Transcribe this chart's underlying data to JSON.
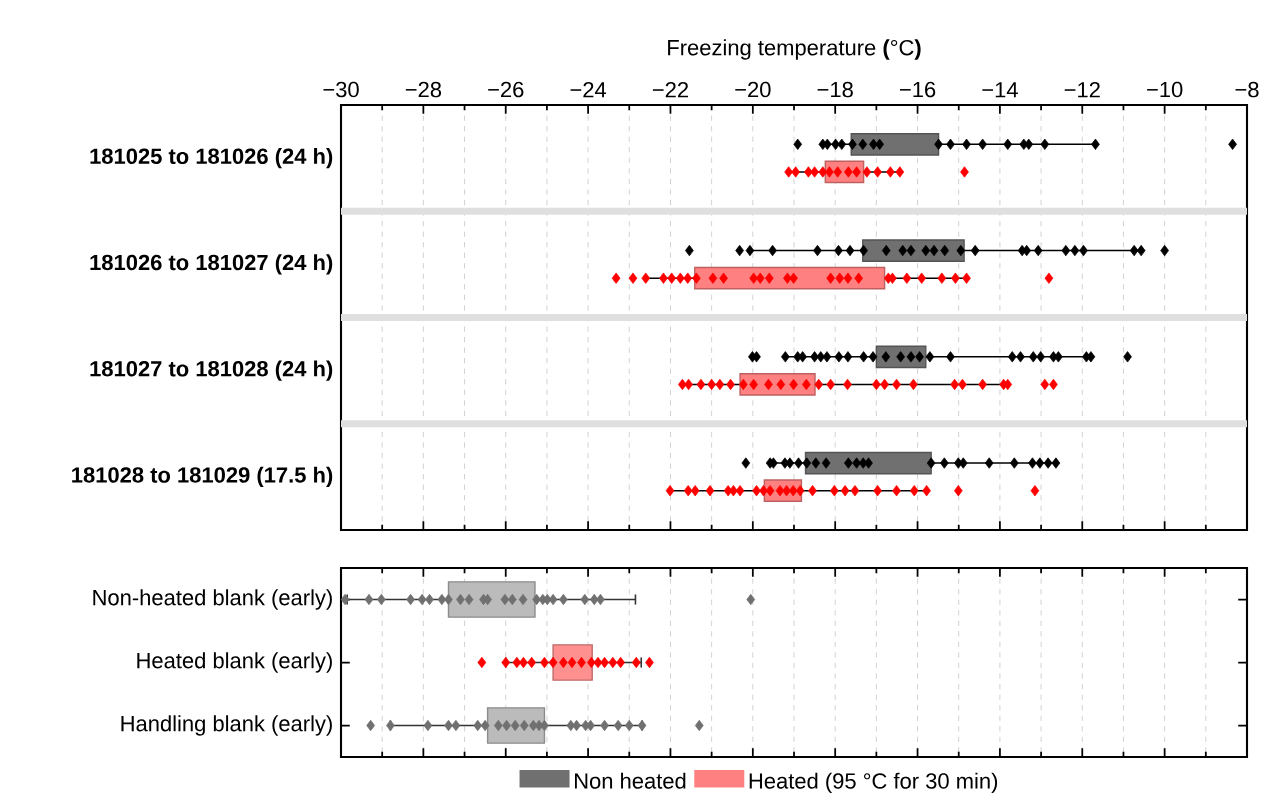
{
  "chart_data": [
    {
      "type": "box",
      "orientation": "horizontal",
      "xlabel": "Freezing temperature **(**°C**)**",
      "categories": [
        "181025 to 181026 (24 h)",
        "181026 to 181027 (24 h)",
        "181027 to 181028 (24 h)",
        "181028 to 181029 (17.5 h)"
      ],
      "xlim": [
        -30,
        -8
      ],
      "xticks": [
        {
          "value": -30,
          "label": "−30"
        },
        {
          "value": -28,
          "label": "−28"
        },
        {
          "value": -26,
          "label": "−26"
        },
        {
          "value": -24,
          "label": "−24"
        },
        {
          "value": -22,
          "label": "−22"
        },
        {
          "value": -20,
          "label": "−20"
        },
        {
          "value": -18,
          "label": "−18"
        },
        {
          "value": -16,
          "label": "−16"
        },
        {
          "value": -14,
          "label": "−14"
        },
        {
          "value": -12,
          "label": "−12"
        },
        {
          "value": -10,
          "label": "−10"
        },
        {
          "value": -8,
          "label": "−8"
        }
      ],
      "grid": "x",
      "legend": "bottom",
      "marker": "diamond",
      "series": [
        {
          "name": "Non heated",
          "color": "#707070",
          "boxes": [
            {
              "low": -18.3,
              "q1": -17.61,
              "q3": -15.49,
              "high": -11.68
            },
            {
              "low": -20.07,
              "q1": -17.33,
              "q3": -14.87,
              "high": -10.57
            },
            {
              "low": -19.21,
              "q1": -17.0,
              "q3": -15.8,
              "high": -11.79
            },
            {
              "low": -19.58,
              "q1": -18.72,
              "q3": -15.67,
              "high": -12.64
            }
          ]
        },
        {
          "name": "Heated (95 °C for 30 min)",
          "color": "#ff8080",
          "boxes": [
            {
              "low": -19.13,
              "q1": -18.24,
              "q3": -17.31,
              "high": -16.43
            },
            {
              "low": -22.6,
              "q1": -21.41,
              "q3": -16.8,
              "high": -14.81
            },
            {
              "low": -21.71,
              "q1": -20.31,
              "q3": -18.49,
              "high": -13.81
            },
            {
              "low": -22.01,
              "q1": -19.72,
              "q3": -18.82,
              "high": -15.78
            }
          ]
        },
        {
          "type": "scatter",
          "color": "#000000",
          "x": [
            "181025 to 181026 (24 h)",
            "181025 to 181026 (24 h)",
            "181025 to 181026 (24 h)",
            "181025 to 181026 (24 h)",
            "181025 to 181026 (24 h)",
            "181025 to 181026 (24 h)",
            "181025 to 181026 (24 h)",
            "181025 to 181026 (24 h)",
            "181025 to 181026 (24 h)",
            "181025 to 181026 (24 h)",
            "181025 to 181026 (24 h)",
            "181025 to 181026 (24 h)",
            "181025 to 181026 (24 h)",
            "181025 to 181026 (24 h)",
            "181025 to 181026 (24 h)",
            "181025 to 181026 (24 h)",
            "181025 to 181026 (24 h)",
            "181025 to 181026 (24 h)",
            "181025 to 181026 (24 h)",
            "181026 to 181027 (24 h)",
            "181026 to 181027 (24 h)",
            "181026 to 181027 (24 h)",
            "181026 to 181027 (24 h)",
            "181026 to 181027 (24 h)",
            "181026 to 181027 (24 h)",
            "181026 to 181027 (24 h)",
            "181026 to 181027 (24 h)",
            "181026 to 181027 (24 h)",
            "181026 to 181027 (24 h)",
            "181026 to 181027 (24 h)",
            "181026 to 181027 (24 h)",
            "181026 to 181027 (24 h)",
            "181026 to 181027 (24 h)",
            "181026 to 181027 (24 h)",
            "181026 to 181027 (24 h)",
            "181026 to 181027 (24 h)",
            "181026 to 181027 (24 h)",
            "181026 to 181027 (24 h)",
            "181026 to 181027 (24 h)",
            "181026 to 181027 (24 h)",
            "181026 to 181027 (24 h)",
            "181026 to 181027 (24 h)",
            "181026 to 181027 (24 h)",
            "181026 to 181027 (24 h)",
            "181027 to 181028 (24 h)",
            "181027 to 181028 (24 h)",
            "181027 to 181028 (24 h)",
            "181027 to 181028 (24 h)",
            "181027 to 181028 (24 h)",
            "181027 to 181028 (24 h)",
            "181027 to 181028 (24 h)",
            "181027 to 181028 (24 h)",
            "181027 to 181028 (24 h)",
            "181027 to 181028 (24 h)",
            "181027 to 181028 (24 h)",
            "181027 to 181028 (24 h)",
            "181027 to 181028 (24 h)",
            "181027 to 181028 (24 h)",
            "181027 to 181028 (24 h)",
            "181027 to 181028 (24 h)",
            "181027 to 181028 (24 h)",
            "181027 to 181028 (24 h)",
            "181027 to 181028 (24 h)",
            "181027 to 181028 (24 h)",
            "181027 to 181028 (24 h)",
            "181027 to 181028 (24 h)",
            "181027 to 181028 (24 h)",
            "181027 to 181028 (24 h)",
            "181027 to 181028 (24 h)",
            "181027 to 181028 (24 h)",
            "181027 to 181028 (24 h)",
            "181028 to 181029 (17.5 h)",
            "181028 to 181029 (17.5 h)",
            "181028 to 181029 (17.5 h)",
            "181028 to 181029 (17.5 h)",
            "181028 to 181029 (17.5 h)",
            "181028 to 181029 (17.5 h)",
            "181028 to 181029 (17.5 h)",
            "181028 to 181029 (17.5 h)",
            "181028 to 181029 (17.5 h)",
            "181028 to 181029 (17.5 h)",
            "181028 to 181029 (17.5 h)",
            "181028 to 181029 (17.5 h)",
            "181028 to 181029 (17.5 h)",
            "181028 to 181029 (17.5 h)",
            "181028 to 181029 (17.5 h)",
            "181028 to 181029 (17.5 h)",
            "181028 to 181029 (17.5 h)",
            "181028 to 181029 (17.5 h)",
            "181028 to 181029 (17.5 h)",
            "181028 to 181029 (17.5 h)",
            "181028 to 181029 (17.5 h)",
            "181028 to 181029 (17.5 h)",
            "181028 to 181029 (17.5 h)"
          ],
          "values": [
            -18.91,
            -18.3,
            -18.19,
            -17.99,
            -17.84,
            -17.58,
            -17.33,
            -17.07,
            -16.92,
            -15.49,
            -15.2,
            -14.81,
            -14.42,
            -13.81,
            -13.42,
            -13.3,
            -12.91,
            -11.68,
            -8.35,
            -21.54,
            -20.32,
            -20.07,
            -19.52,
            -18.43,
            -17.92,
            -17.64,
            -17.31,
            -16.76,
            -16.36,
            -16.16,
            -15.8,
            -15.6,
            -15.34,
            -14.95,
            -14.6,
            -13.46,
            -13.35,
            -13.07,
            -12.4,
            -12.18,
            -11.97,
            -10.74,
            -10.57,
            -10.0,
            -20.01,
            -19.91,
            -19.21,
            -18.91,
            -18.79,
            -18.5,
            -18.35,
            -18.2,
            -17.91,
            -17.69,
            -17.31,
            -17.08,
            -16.77,
            -16.41,
            -16.16,
            -15.95,
            -15.7,
            -15.2,
            -13.7,
            -13.5,
            -13.19,
            -13.01,
            -12.7,
            -12.58,
            -11.9,
            -11.79,
            -10.9,
            -20.17,
            -19.58,
            -19.5,
            -19.22,
            -19.1,
            -18.89,
            -18.69,
            -18.47,
            -18.22,
            -17.68,
            -17.48,
            -17.32,
            -17.19,
            -15.67,
            -15.35,
            -15.01,
            -14.89,
            -14.26,
            -13.65,
            -13.21,
            -13.03,
            -12.83,
            -12.64
          ]
        },
        {
          "type": "scatter",
          "color": "#ff0000",
          "x": [
            "181025 to 181026 (24 h)",
            "181025 to 181026 (24 h)",
            "181025 to 181026 (24 h)",
            "181025 to 181026 (24 h)",
            "181025 to 181026 (24 h)",
            "181025 to 181026 (24 h)",
            "181025 to 181026 (24 h)",
            "181025 to 181026 (24 h)",
            "181025 to 181026 (24 h)",
            "181025 to 181026 (24 h)",
            "181025 to 181026 (24 h)",
            "181025 to 181026 (24 h)",
            "181025 to 181026 (24 h)",
            "181025 to 181026 (24 h)",
            "181026 to 181027 (24 h)",
            "181026 to 181027 (24 h)",
            "181026 to 181027 (24 h)",
            "181026 to 181027 (24 h)",
            "181026 to 181027 (24 h)",
            "181026 to 181027 (24 h)",
            "181026 to 181027 (24 h)",
            "181026 to 181027 (24 h)",
            "181026 to 181027 (24 h)",
            "181026 to 181027 (24 h)",
            "181026 to 181027 (24 h)",
            "181026 to 181027 (24 h)",
            "181026 to 181027 (24 h)",
            "181026 to 181027 (24 h)",
            "181026 to 181027 (24 h)",
            "181026 to 181027 (24 h)",
            "181026 to 181027 (24 h)",
            "181026 to 181027 (24 h)",
            "181026 to 181027 (24 h)",
            "181026 to 181027 (24 h)",
            "181026 to 181027 (24 h)",
            "181026 to 181027 (24 h)",
            "181026 to 181027 (24 h)",
            "181026 to 181027 (24 h)",
            "181026 to 181027 (24 h)",
            "181026 to 181027 (24 h)",
            "181026 to 181027 (24 h)",
            "181027 to 181028 (24 h)",
            "181027 to 181028 (24 h)",
            "181027 to 181028 (24 h)",
            "181027 to 181028 (24 h)",
            "181027 to 181028 (24 h)",
            "181027 to 181028 (24 h)",
            "181027 to 181028 (24 h)",
            "181027 to 181028 (24 h)",
            "181027 to 181028 (24 h)",
            "181027 to 181028 (24 h)",
            "181027 to 181028 (24 h)",
            "181027 to 181028 (24 h)",
            "181027 to 181028 (24 h)",
            "181027 to 181028 (24 h)",
            "181027 to 181028 (24 h)",
            "181027 to 181028 (24 h)",
            "181027 to 181028 (24 h)",
            "181027 to 181028 (24 h)",
            "181027 to 181028 (24 h)",
            "181027 to 181028 (24 h)",
            "181027 to 181028 (24 h)",
            "181027 to 181028 (24 h)",
            "181027 to 181028 (24 h)",
            "181027 to 181028 (24 h)",
            "181027 to 181028 (24 h)",
            "181027 to 181028 (24 h)",
            "181028 to 181029 (17.5 h)",
            "181028 to 181029 (17.5 h)",
            "181028 to 181029 (17.5 h)",
            "181028 to 181029 (17.5 h)",
            "181028 to 181029 (17.5 h)",
            "181028 to 181029 (17.5 h)",
            "181028 to 181029 (17.5 h)",
            "181028 to 181029 (17.5 h)",
            "181028 to 181029 (17.5 h)",
            "181028 to 181029 (17.5 h)",
            "181028 to 181029 (17.5 h)",
            "181028 to 181029 (17.5 h)",
            "181028 to 181029 (17.5 h)",
            "181028 to 181029 (17.5 h)",
            "181028 to 181029 (17.5 h)",
            "181028 to 181029 (17.5 h)",
            "181028 to 181029 (17.5 h)",
            "181028 to 181029 (17.5 h)",
            "181028 to 181029 (17.5 h)",
            "181028 to 181029 (17.5 h)",
            "181028 to 181029 (17.5 h)",
            "181028 to 181029 (17.5 h)",
            "181028 to 181029 (17.5 h)",
            "181028 to 181029 (17.5 h)"
          ],
          "values": [
            -19.13,
            -18.96,
            -18.65,
            -18.5,
            -18.3,
            -18.14,
            -17.94,
            -17.68,
            -17.48,
            -17.23,
            -16.97,
            -16.66,
            -16.43,
            -14.86,
            -23.32,
            -22.91,
            -22.6,
            -22.17,
            -21.97,
            -21.76,
            -21.58,
            -21.37,
            -20.97,
            -20.71,
            -19.98,
            -19.82,
            -19.6,
            -19.16,
            -19.01,
            -18.11,
            -17.89,
            -17.69,
            -17.43,
            -16.71,
            -16.61,
            -16.26,
            -15.9,
            -15.41,
            -15.08,
            -14.81,
            -12.81,
            -21.71,
            -21.56,
            -21.26,
            -21.0,
            -20.8,
            -20.54,
            -20.23,
            -19.98,
            -19.62,
            -19.32,
            -19.01,
            -18.7,
            -18.4,
            -18.11,
            -17.7,
            -17.0,
            -16.8,
            -16.51,
            -16.1,
            -15.1,
            -14.91,
            -14.42,
            -13.91,
            -13.81,
            -12.91,
            -12.7,
            -22.01,
            -21.57,
            -21.4,
            -21.04,
            -20.6,
            -20.47,
            -20.31,
            -19.91,
            -19.74,
            -19.58,
            -19.34,
            -19.18,
            -19.02,
            -18.85,
            -18.55,
            -18.02,
            -17.76,
            -17.52,
            -16.97,
            -16.51,
            -16.08,
            -15.78,
            -15.01,
            -13.15
          ]
        }
      ]
    },
    {
      "type": "box",
      "orientation": "horizontal",
      "categories": [
        "Non-heated blank (early)",
        "Heated blank (early)",
        "Handling blank (early)"
      ],
      "xlim": [
        -30,
        -8
      ],
      "xticks": [
        -30,
        -28,
        -26,
        -24,
        -22,
        -20,
        -18,
        -16,
        -14,
        -12,
        -10,
        -8
      ],
      "tick_labels": "y",
      "grid": "x",
      "marker": "diamond",
      "series": [
        {
          "color": "#bbbbbb",
          "boxes": [
            {
              "low": -29.85,
              "q1": -27.39,
              "q3": -25.29,
              "high": -22.85
            },
            null,
            {
              "low": -28.8,
              "q1": -26.44,
              "q3": -25.06,
              "high": -22.69
            }
          ]
        },
        {
          "color": "#ff9090",
          "boxes": [
            null,
            {
              "low": -26.0,
              "q1": -24.85,
              "q3": -23.9,
              "high": -22.71
            },
            null
          ]
        },
        {
          "type": "scatter",
          "color": "#707070",
          "x": [
            "Non-heated blank (early)",
            "Non-heated blank (early)",
            "Non-heated blank (early)",
            "Non-heated blank (early)",
            "Non-heated blank (early)",
            "Non-heated blank (early)",
            "Non-heated blank (early)",
            "Non-heated blank (early)",
            "Non-heated blank (early)",
            "Non-heated blank (early)",
            "Non-heated blank (early)",
            "Non-heated blank (early)",
            "Non-heated blank (early)",
            "Non-heated blank (early)",
            "Non-heated blank (early)",
            "Non-heated blank (early)",
            "Non-heated blank (early)",
            "Non-heated blank (early)",
            "Non-heated blank (early)",
            "Non-heated blank (early)",
            "Non-heated blank (early)",
            "Non-heated blank (early)",
            "Non-heated blank (early)",
            "Non-heated blank (early)",
            "Handling blank (early)",
            "Handling blank (early)",
            "Handling blank (early)",
            "Handling blank (early)",
            "Handling blank (early)",
            "Handling blank (early)",
            "Handling blank (early)",
            "Handling blank (early)",
            "Handling blank (early)",
            "Handling blank (early)",
            "Handling blank (early)",
            "Handling blank (early)",
            "Handling blank (early)",
            "Handling blank (early)",
            "Handling blank (early)",
            "Handling blank (early)",
            "Handling blank (early)",
            "Handling blank (early)",
            "Handling blank (early)",
            "Handling blank (early)",
            "Handling blank (early)",
            "Handling blank (early)",
            "Handling blank (early)"
          ],
          "values": [
            -29.9,
            -29.32,
            -29.02,
            -28.31,
            -28.03,
            -27.85,
            -27.55,
            -27.39,
            -27.1,
            -26.89,
            -26.54,
            -26.44,
            -26.02,
            -25.84,
            -25.58,
            -25.25,
            -25.1,
            -24.99,
            -24.85,
            -24.6,
            -24.08,
            -23.85,
            -23.7,
            -20.05,
            -29.28,
            -28.8,
            -27.89,
            -27.39,
            -27.21,
            -26.68,
            -26.5,
            -26.18,
            -25.98,
            -25.77,
            -25.55,
            -25.33,
            -25.19,
            -25.06,
            -24.42,
            -24.28,
            -24.06,
            -23.94,
            -23.6,
            -23.27,
            -23.0,
            -22.69,
            -21.3
          ]
        },
        {
          "type": "scatter",
          "color": "#ff0000",
          "x": [
            "Heated blank (early)",
            "Heated blank (early)",
            "Heated blank (early)",
            "Heated blank (early)",
            "Heated blank (early)",
            "Heated blank (early)",
            "Heated blank (early)",
            "Heated blank (early)",
            "Heated blank (early)",
            "Heated blank (early)",
            "Heated blank (early)",
            "Heated blank (early)",
            "Heated blank (early)",
            "Heated blank (early)",
            "Heated blank (early)",
            "Heated blank (early)",
            "Heated blank (early)"
          ],
          "values": [
            -26.58,
            -26.0,
            -25.73,
            -25.57,
            -25.37,
            -25.06,
            -24.85,
            -24.6,
            -24.39,
            -24.16,
            -23.92,
            -23.76,
            -23.6,
            -23.4,
            -23.21,
            -22.83,
            -22.51
          ]
        }
      ]
    }
  ]
}
